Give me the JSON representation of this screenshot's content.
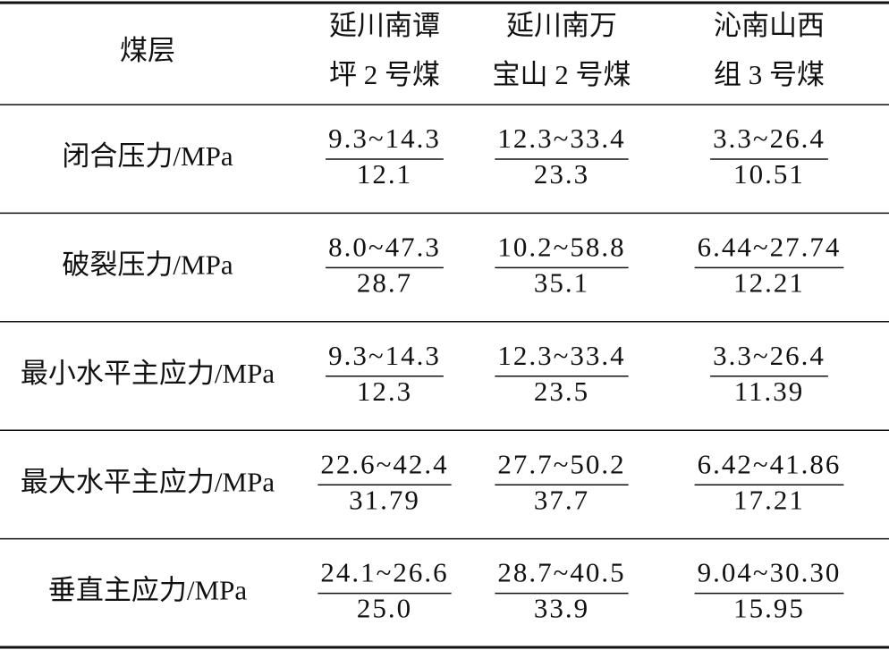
{
  "table": {
    "header": [
      "煤层",
      [
        "延川南谭",
        "坪 2 号煤"
      ],
      [
        "延川南万",
        "宝山 2 号煤"
      ],
      [
        "沁南山西",
        "组 3 号煤"
      ]
    ],
    "rows": [
      [
        "闭合压力/MPa",
        [
          "9.3~14.3",
          "12.1"
        ],
        [
          "12.3~33.4",
          "23.3"
        ],
        [
          "3.3~26.4",
          "10.51"
        ]
      ],
      [
        "破裂压力/MPa",
        [
          "8.0~47.3",
          "28.7"
        ],
        [
          "10.2~58.8",
          "35.1"
        ],
        [
          "6.44~27.74",
          "12.21"
        ]
      ],
      [
        "最小水平主应力/MPa",
        [
          "9.3~14.3",
          "12.3"
        ],
        [
          "12.3~33.4",
          "23.5"
        ],
        [
          "3.3~26.4",
          "11.39"
        ]
      ],
      [
        "最大水平主应力/MPa",
        [
          "22.6~42.4",
          "31.79"
        ],
        [
          "27.7~50.2",
          "37.7"
        ],
        [
          "6.42~41.86",
          "17.21"
        ]
      ],
      [
        "垂直主应力/MPa",
        [
          "24.1~26.6",
          "25.0"
        ],
        [
          "28.7~40.5",
          "33.9"
        ],
        [
          "9.04~30.30",
          "15.95"
        ]
      ]
    ]
  }
}
